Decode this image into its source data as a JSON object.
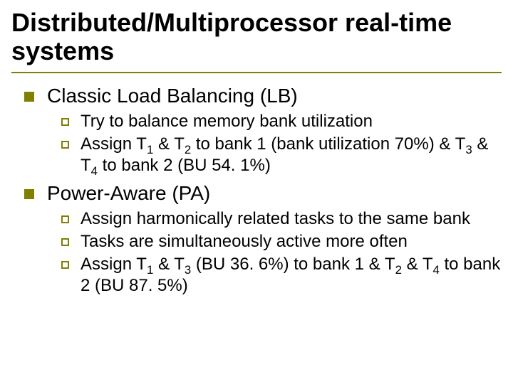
{
  "colors": {
    "background": "#ffffff",
    "text": "#000000",
    "title_underline": "#808000",
    "bullet_square_fill": "#808000",
    "bullet_hollow_border": "#808000"
  },
  "typography": {
    "font_family": "Comic Sans MS",
    "title_fontsize_pt": 36,
    "level1_fontsize_pt": 28,
    "level2_fontsize_pt": 24
  },
  "title": "Distributed/Multiprocessor real-time systems",
  "sections": [
    {
      "heading": "Classic Load Balancing (LB)",
      "items": [
        {
          "text": "Try to balance memory bank utilization"
        },
        {
          "html": "Assign T<sub>1</sub> &amp; T<sub>2</sub> to bank 1 (bank utilization 70%) &amp; T<sub>3</sub> &amp; T<sub>4</sub> to bank 2 (BU 54. 1%)"
        }
      ]
    },
    {
      "heading": "Power-Aware (PA)",
      "items": [
        {
          "text": "Assign harmonically related tasks to the same bank"
        },
        {
          "text": "Tasks are simultaneously active more often"
        },
        {
          "html": "Assign T<sub>1</sub> &amp; T<sub>3</sub> (BU 36. 6%) to bank 1 &amp; T<sub>2</sub> &amp; T<sub>4</sub> to bank 2 (BU 87. 5%)"
        }
      ]
    }
  ]
}
